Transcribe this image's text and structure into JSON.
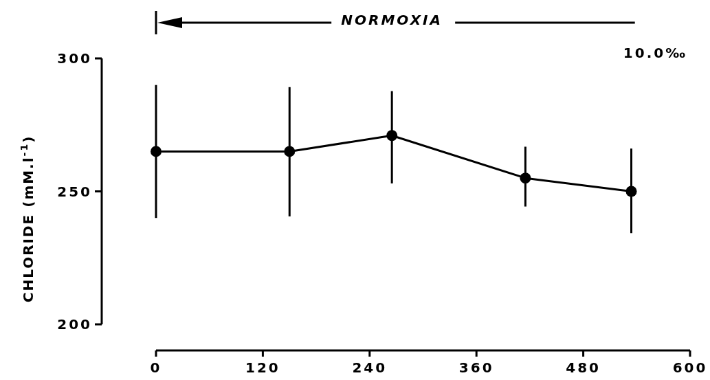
{
  "chart_data": {
    "type": "line",
    "ylabel": "CHLORIDE (mM.l$^{-1}$)",
    "x": [
      0,
      150,
      265,
      415,
      534
    ],
    "series": [
      {
        "color": "#000000",
        "values": [
          265,
          265,
          271,
          255,
          250
        ],
        "errors": [
          [
            240,
            290
          ],
          [
            240.6,
            289.2
          ],
          [
            253,
            287.7
          ],
          [
            244.3,
            266.8
          ],
          [
            234.3,
            266.1
          ]
        ]
      }
    ],
    "xlim": [
      0,
      600
    ],
    "xticks": [
      0,
      120,
      240,
      360,
      480,
      600
    ],
    "ylim": [
      200,
      300
    ],
    "yticks": [
      200,
      250,
      300
    ],
    "annotations": [
      "NORMOXIA",
      "10.0‰"
    ],
    "grid": false,
    "marker": "circle",
    "line_style": "solid"
  }
}
